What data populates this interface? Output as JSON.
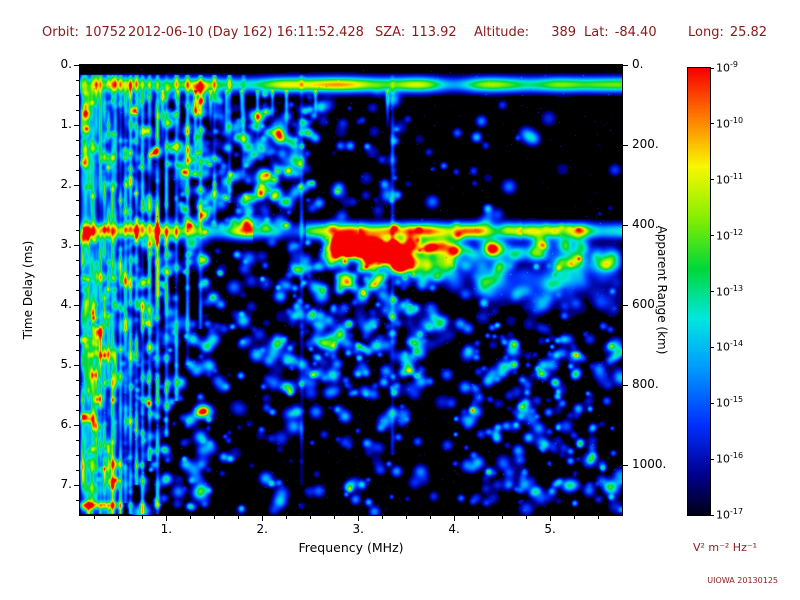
{
  "header": {
    "fields": [
      {
        "label": "Orbit:",
        "value": "10752"
      },
      {
        "label": "",
        "value": "2012-06-10 (Day 162) 16:11:52.428"
      },
      {
        "label": "SZA:",
        "value": "113.92"
      },
      {
        "label": "Altitude:",
        "value": "389"
      },
      {
        "label": "Lat:",
        "value": "-84.40"
      },
      {
        "label": "Long:",
        "value": "25.82"
      }
    ]
  },
  "axes": {
    "x": {
      "label": "Frequency (MHz)",
      "min": 0.1,
      "max": 5.75,
      "major_ticks": [
        1,
        2,
        3,
        4,
        5
      ],
      "minor_step": 0.25
    },
    "y_left": {
      "label": "Time Delay (ms)",
      "min": 0,
      "max": 7.5,
      "major_ticks": [
        0,
        1,
        2,
        3,
        4,
        5,
        6,
        7
      ],
      "minor_step": 0.25
    },
    "y_right": {
      "label": "Apparent Range (km)",
      "ticks_km": [
        0,
        200,
        400,
        600,
        800,
        1000
      ],
      "km_per_ms": 150
    }
  },
  "colorbar": {
    "exponents": [
      -9,
      -10,
      -11,
      -12,
      -13,
      -14,
      -15,
      -16,
      -17
    ],
    "unit": "V² m⁻² Hz⁻¹",
    "stops": [
      [
        0,
        "#000018"
      ],
      [
        0.09,
        "#000090"
      ],
      [
        0.2,
        "#0030ff"
      ],
      [
        0.33,
        "#009cff"
      ],
      [
        0.44,
        "#00e8e0"
      ],
      [
        0.55,
        "#00d83a"
      ],
      [
        0.67,
        "#8cf000"
      ],
      [
        0.78,
        "#f8f800"
      ],
      [
        0.88,
        "#ff8800"
      ],
      [
        1,
        "#f80000"
      ]
    ]
  },
  "credit": "UIOWA 20130125",
  "chart_data": {
    "type": "heatmap",
    "description": "Radar sounder ionogram: log10 received spectral density vs sounding frequency and echo time delay; black background = below 1e-17",
    "x": {
      "label": "Frequency (MHz)",
      "range": [
        0.1,
        5.75
      ]
    },
    "y": {
      "label": "Time Delay (ms)",
      "range": [
        0,
        7.5
      ],
      "inverted": true
    },
    "y2": {
      "label": "Apparent Range (km)",
      "km_per_ms": 150,
      "ticks": [
        0,
        200,
        400,
        600,
        800,
        1000
      ]
    },
    "z": {
      "scale": "log10",
      "min": 1e-17,
      "max": 1e-09,
      "units": "V² m⁻² Hz⁻¹"
    },
    "background": "#000000",
    "seed": 20130125,
    "features": {
      "ionospheric_echo_band": {
        "time_delay_ms": 0.32,
        "halfwidth_ms": 0.14,
        "amp": 0.7
      },
      "surface_echo_band": {
        "time_delay_ms": 2.76,
        "sigma_ms": 0.09,
        "amp": 0.78,
        "apparent_range_km": 414,
        "dim_freq_range": [
          1.9,
          2.45
        ],
        "bright_freq_range": [
          3.0,
          4.7
        ]
      },
      "plasma_harmonic_stripes": [
        [
          0.12,
          0.62,
          7.5
        ],
        [
          0.15,
          0.5,
          7.5
        ],
        [
          0.18,
          0.58,
          7.5
        ],
        [
          0.21,
          0.48,
          7.5
        ],
        [
          0.24,
          0.6,
          7.5
        ],
        [
          0.27,
          0.52,
          7.5
        ],
        [
          0.31,
          0.66,
          7.5
        ],
        [
          0.35,
          0.55,
          7.5
        ],
        [
          0.39,
          0.5,
          7.5
        ],
        [
          0.43,
          0.62,
          7.5
        ],
        [
          0.47,
          0.48,
          7.5
        ],
        [
          0.52,
          0.58,
          7.5
        ],
        [
          0.57,
          0.44,
          7.3
        ],
        [
          0.62,
          0.54,
          7.5
        ],
        [
          0.68,
          0.48,
          7.0
        ],
        [
          0.75,
          0.44,
          7.5
        ],
        [
          0.82,
          0.5,
          6.6
        ],
        [
          0.9,
          0.68,
          7.5
        ],
        [
          1.0,
          0.44,
          6.2
        ],
        [
          1.1,
          0.4,
          5.6
        ],
        [
          1.22,
          0.44,
          5.0
        ],
        [
          1.35,
          0.38,
          4.4
        ],
        [
          1.5,
          0.34,
          2.7
        ],
        [
          1.65,
          0.3,
          2.3
        ],
        [
          1.8,
          0.27,
          1.9
        ],
        [
          2.4,
          0.2,
          7.0
        ],
        [
          3.35,
          0.18,
          6.5
        ]
      ],
      "drips": [
        [
          0.95,
          1.2
        ],
        [
          1.12,
          0.8
        ],
        [
          1.3,
          1.5
        ],
        [
          1.45,
          0.7
        ],
        [
          1.62,
          1.0
        ],
        [
          1.78,
          0.6
        ],
        [
          1.95,
          0.9
        ],
        [
          2.1,
          0.5
        ],
        [
          2.25,
          0.8
        ],
        [
          2.55,
          0.5
        ],
        [
          3.3,
          0.7
        ]
      ],
      "diffuse_scatter_below_surface": {
        "freq_start": 2.7,
        "max_depth_ms": 1.25,
        "amp": 0.3
      },
      "speckle": {
        "count": 1000,
        "clusters": [
          [
            2.2,
            3.7,
            2.9,
            5.5,
            220
          ],
          [
            4.1,
            5.65,
            4.3,
            7.3,
            160
          ],
          [
            0.25,
            1.55,
            3.0,
            7.4,
            140
          ],
          [
            1.3,
            2.6,
            0.6,
            2.4,
            120
          ],
          [
            0.55,
            1.45,
            0.5,
            3.0,
            90
          ],
          [
            1.3,
            2.4,
            1.1,
            2.7,
            60
          ]
        ]
      }
    }
  }
}
